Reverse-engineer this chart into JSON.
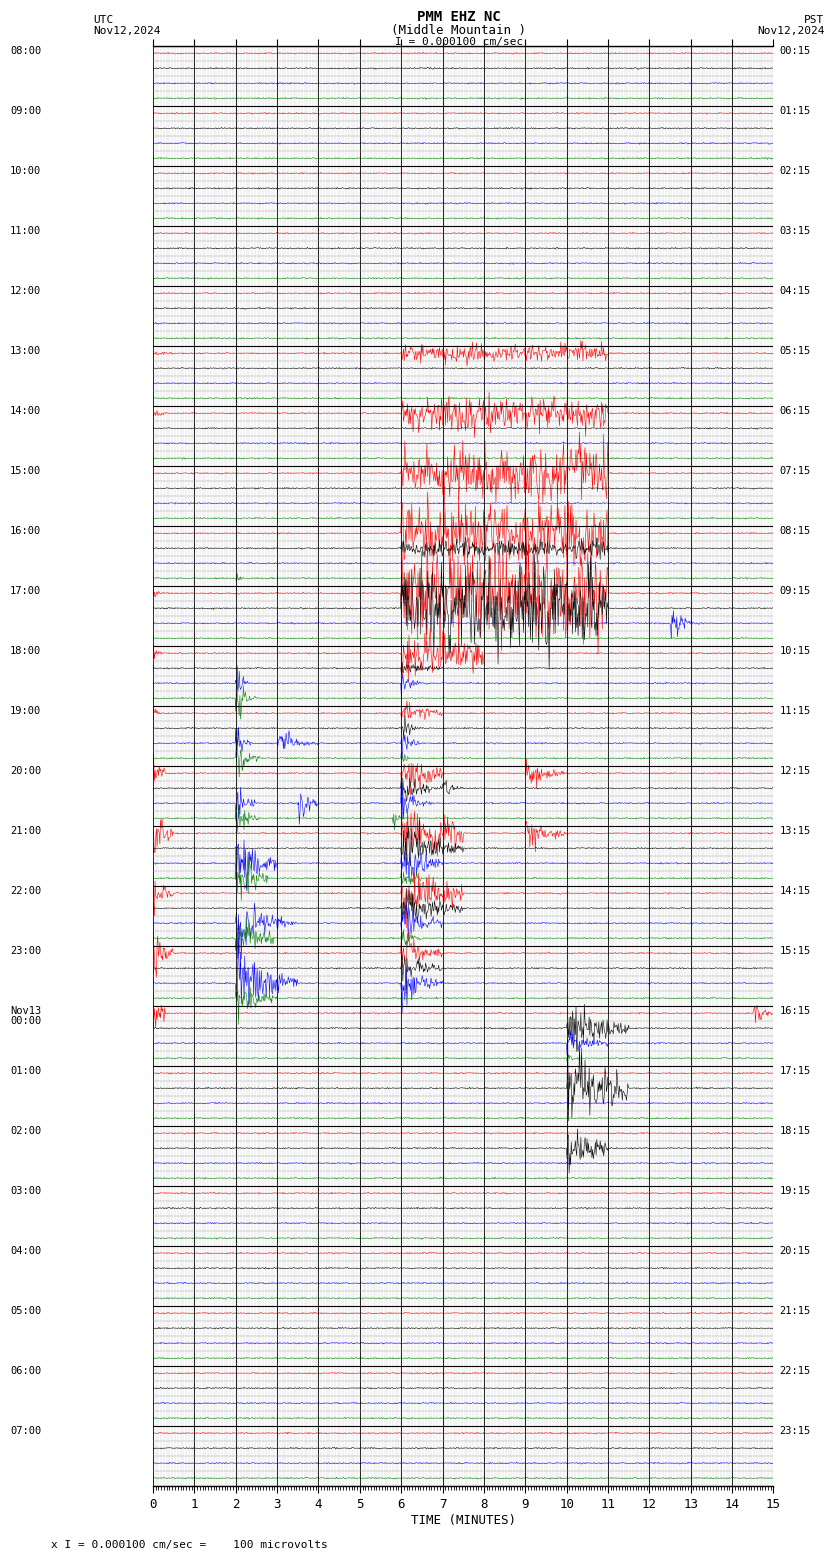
{
  "title_line1": "PMM EHZ NC",
  "title_line2": "(Middle Mountain )",
  "scale_label": "I = 0.000100 cm/sec",
  "left_label": "UTC\nNov12,2024",
  "right_label": "PST\nNov12,2024",
  "xlabel": "TIME (MINUTES)",
  "footer_label": "x I = 0.000100 cm/sec =    100 microvolts",
  "x_min": 0,
  "x_max": 15,
  "utc_times": [
    "08:00",
    "09:00",
    "10:00",
    "11:00",
    "12:00",
    "13:00",
    "14:00",
    "15:00",
    "16:00",
    "17:00",
    "18:00",
    "19:00",
    "20:00",
    "21:00",
    "22:00",
    "23:00",
    "Nov13\n00:00",
    "01:00",
    "02:00",
    "03:00",
    "04:00",
    "05:00",
    "06:00",
    "07:00"
  ],
  "pst_times": [
    "00:15",
    "01:15",
    "02:15",
    "03:15",
    "04:15",
    "05:15",
    "06:15",
    "07:15",
    "08:15",
    "09:15",
    "10:15",
    "11:15",
    "12:15",
    "13:15",
    "14:15",
    "15:15",
    "16:15",
    "17:15",
    "18:15",
    "19:15",
    "20:15",
    "21:15",
    "22:15",
    "23:15"
  ],
  "n_rows": 24,
  "n_subtraces": 4,
  "bg_color": "#ffffff",
  "grid_minor_color": "#bbbbbb",
  "grid_major_color": "#000000",
  "trace_colors": [
    "#ff0000",
    "#000000",
    "#0000ff",
    "#008000"
  ],
  "signal_colors": {
    "red": "#ff0000",
    "blue": "#0000ff",
    "green": "#008000",
    "black": "#000000"
  }
}
